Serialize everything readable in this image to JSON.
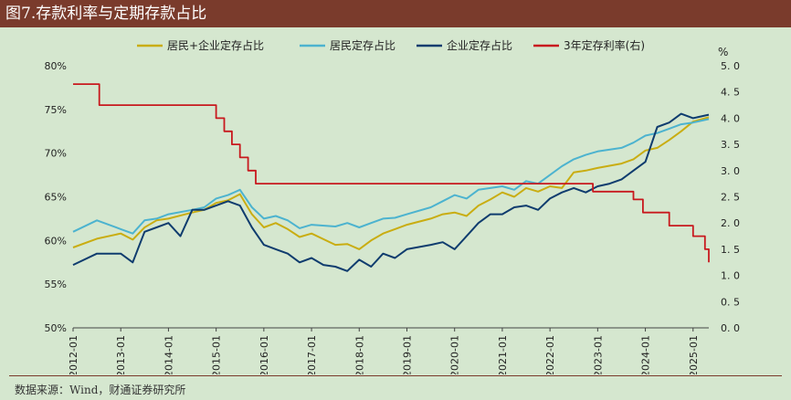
{
  "title": "图7.存款利率与定期存款占比",
  "source": "数据来源：Wind，财通证券研究所",
  "chart_data": {
    "type": "line",
    "xlabel": "",
    "ylabel": "",
    "y2_unit": "%",
    "ylim": [
      50,
      80
    ],
    "y2lim": [
      0,
      5
    ],
    "y_ticks": [
      "80%",
      "75%",
      "70%",
      "65%",
      "60%",
      "55%",
      "50%"
    ],
    "y2_ticks": [
      "5. 0",
      "4. 5",
      "4. 0",
      "3. 5",
      "3. 0",
      "2. 5",
      "2. 0",
      "1. 5",
      "1. 0",
      "0. 5",
      "0. 0"
    ],
    "x_ticks": [
      "2012-01",
      "2013-01",
      "2014-01",
      "2015-01",
      "2016-01",
      "2017-01",
      "2018-01",
      "2019-01",
      "2020-01",
      "2021-01",
      "2022-01",
      "2023-01",
      "2024-01",
      "2025-01"
    ],
    "xrange": [
      2012.0,
      2025.33
    ],
    "legend_position": "top",
    "colors": {
      "combined": "#c9ad12",
      "resident": "#4cb3cf",
      "enterprise": "#0f3c6e",
      "rate": "#c8191e"
    },
    "series": [
      {
        "name": "居民+企业定存占比",
        "axis": "left",
        "x": [
          2012.0,
          2012.5,
          2013.0,
          2013.25,
          2013.5,
          2013.75,
          2014.0,
          2014.5,
          2014.75,
          2015.0,
          2015.25,
          2015.5,
          2015.75,
          2016.0,
          2016.25,
          2016.5,
          2016.75,
          2017.0,
          2017.5,
          2017.75,
          2018.0,
          2018.25,
          2018.5,
          2018.75,
          2019.0,
          2019.5,
          2019.75,
          2020.0,
          2020.25,
          2020.5,
          2020.75,
          2021.0,
          2021.25,
          2021.5,
          2021.75,
          2022.0,
          2022.25,
          2022.5,
          2022.75,
          2023.0,
          2023.5,
          2023.75,
          2024.0,
          2024.25,
          2024.5,
          2024.75,
          2025.0,
          2025.33
        ],
        "values": [
          59.2,
          60.2,
          60.8,
          60.1,
          61.5,
          62.3,
          62.5,
          63.2,
          63.5,
          64.3,
          64.6,
          65.3,
          63.0,
          61.5,
          62.0,
          61.3,
          60.4,
          60.8,
          59.5,
          59.6,
          59.0,
          60.0,
          60.8,
          61.3,
          61.8,
          62.5,
          63.0,
          63.2,
          62.8,
          64.0,
          64.7,
          65.5,
          65.0,
          66.0,
          65.6,
          66.2,
          66.0,
          67.8,
          68.0,
          68.3,
          68.8,
          69.3,
          70.3,
          70.6,
          71.5,
          72.5,
          73.6,
          74.1
        ]
      },
      {
        "name": "居民定存占比",
        "axis": "left",
        "x": [
          2012.0,
          2012.5,
          2013.0,
          2013.25,
          2013.5,
          2013.75,
          2014.0,
          2014.5,
          2014.75,
          2015.0,
          2015.25,
          2015.5,
          2015.75,
          2016.0,
          2016.25,
          2016.5,
          2016.75,
          2017.0,
          2017.5,
          2017.75,
          2018.0,
          2018.25,
          2018.5,
          2018.75,
          2019.0,
          2019.5,
          2019.75,
          2020.0,
          2020.25,
          2020.5,
          2020.75,
          2021.0,
          2021.25,
          2021.5,
          2021.75,
          2022.0,
          2022.25,
          2022.5,
          2022.75,
          2023.0,
          2023.5,
          2023.75,
          2024.0,
          2024.25,
          2024.5,
          2024.75,
          2025.0,
          2025.33
        ],
        "values": [
          61.0,
          62.3,
          61.3,
          60.8,
          62.3,
          62.5,
          63.0,
          63.5,
          63.8,
          64.8,
          65.2,
          65.8,
          63.8,
          62.5,
          62.8,
          62.3,
          61.4,
          61.8,
          61.6,
          62.0,
          61.5,
          62.0,
          62.5,
          62.6,
          63.0,
          63.8,
          64.5,
          65.2,
          64.8,
          65.8,
          66.0,
          66.2,
          65.8,
          66.8,
          66.5,
          67.5,
          68.5,
          69.3,
          69.8,
          70.2,
          70.6,
          71.2,
          72.0,
          72.3,
          72.8,
          73.3,
          73.5,
          73.9
        ]
      },
      {
        "name": "企业定存占比",
        "axis": "left",
        "x": [
          2012.0,
          2012.5,
          2013.0,
          2013.25,
          2013.5,
          2013.75,
          2014.0,
          2014.25,
          2014.5,
          2014.75,
          2015.0,
          2015.25,
          2015.5,
          2015.75,
          2016.0,
          2016.25,
          2016.5,
          2016.75,
          2017.0,
          2017.25,
          2017.5,
          2017.75,
          2018.0,
          2018.25,
          2018.5,
          2018.75,
          2019.0,
          2019.5,
          2019.75,
          2020.0,
          2020.25,
          2020.5,
          2020.75,
          2021.0,
          2021.25,
          2021.5,
          2021.75,
          2022.0,
          2022.25,
          2022.5,
          2022.75,
          2023.0,
          2023.25,
          2023.5,
          2023.75,
          2024.0,
          2024.25,
          2024.5,
          2024.75,
          2025.0,
          2025.33
        ],
        "values": [
          57.2,
          58.5,
          58.5,
          57.5,
          61.0,
          61.5,
          62.0,
          60.5,
          63.5,
          63.5,
          64.0,
          64.5,
          64.0,
          61.5,
          59.5,
          59.0,
          58.5,
          57.5,
          58.0,
          57.2,
          57.0,
          56.5,
          57.8,
          57.0,
          58.5,
          58.0,
          59.0,
          59.5,
          59.8,
          59.0,
          60.5,
          62.0,
          63.0,
          63.0,
          63.8,
          64.0,
          63.5,
          64.8,
          65.5,
          66.0,
          65.5,
          66.2,
          66.5,
          67.0,
          68.0,
          69.0,
          73.0,
          73.5,
          74.5,
          74.0,
          74.4
        ]
      },
      {
        "name": "3年定存利率(右)",
        "axis": "right",
        "step": true,
        "x": [
          2012.0,
          2012.42,
          2012.55,
          2015.0,
          2015.17,
          2015.33,
          2015.5,
          2015.67,
          2015.83,
          2022.6,
          2022.9,
          2023.5,
          2023.75,
          2023.95,
          2024.5,
          2024.75,
          2025.0,
          2025.25,
          2025.33
        ],
        "values": [
          4.65,
          4.65,
          4.25,
          4.0,
          3.75,
          3.5,
          3.25,
          3.0,
          2.75,
          2.75,
          2.6,
          2.6,
          2.45,
          2.2,
          1.95,
          1.95,
          1.75,
          1.5,
          1.25
        ]
      }
    ]
  }
}
